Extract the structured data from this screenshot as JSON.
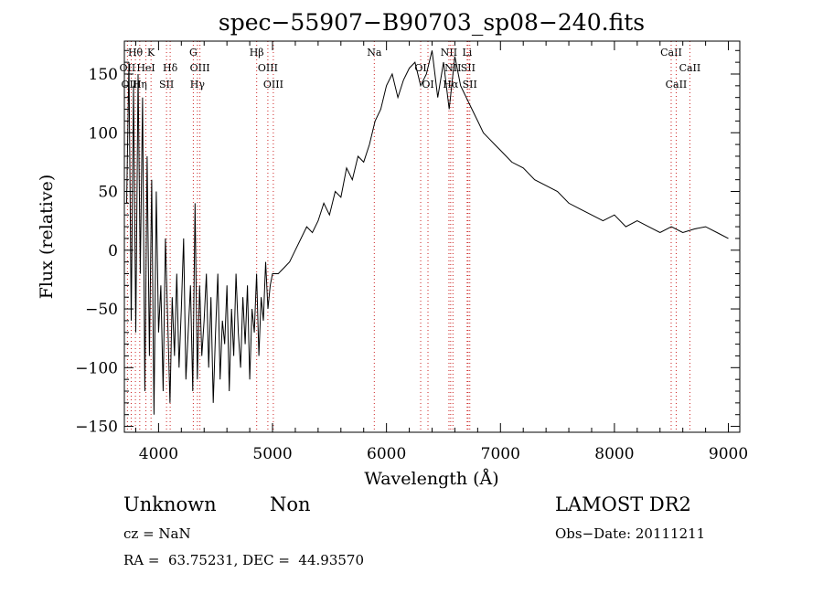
{
  "chart_data": {
    "type": "line",
    "title": "spec−55907−B90703_sp08−240.fits",
    "xlabel": "Wavelength (Å)",
    "ylabel": "Flux (relative)",
    "xlim": [
      3700,
      9100
    ],
    "ylim": [
      -155,
      178
    ],
    "xticks": [
      4000,
      5000,
      6000,
      7000,
      8000,
      9000
    ],
    "yticks": [
      -150,
      -100,
      -50,
      0,
      50,
      100,
      150
    ],
    "grid": false,
    "line_color": "#000000",
    "marker_color": "#cc2222",
    "spectrum": {
      "name": "",
      "x": [
        3720,
        3740,
        3760,
        3780,
        3800,
        3820,
        3840,
        3860,
        3880,
        3900,
        3920,
        3940,
        3960,
        3980,
        4000,
        4020,
        4040,
        4060,
        4080,
        4100,
        4120,
        4140,
        4160,
        4180,
        4200,
        4220,
        4240,
        4260,
        4280,
        4300,
        4320,
        4340,
        4360,
        4380,
        4400,
        4420,
        4440,
        4460,
        4480,
        4500,
        4520,
        4540,
        4560,
        4580,
        4600,
        4620,
        4640,
        4660,
        4680,
        4700,
        4720,
        4740,
        4760,
        4780,
        4800,
        4820,
        4840,
        4860,
        4880,
        4900,
        4920,
        4940,
        4960,
        4980,
        5000,
        5050,
        5100,
        5150,
        5200,
        5250,
        5300,
        5350,
        5400,
        5450,
        5500,
        5550,
        5600,
        5650,
        5700,
        5750,
        5800,
        5850,
        5900,
        5950,
        6000,
        6050,
        6100,
        6150,
        6200,
        6250,
        6300,
        6350,
        6400,
        6450,
        6500,
        6550,
        6600,
        6650,
        6700,
        6750,
        6800,
        6850,
        6900,
        6950,
        7000,
        7100,
        7200,
        7300,
        7400,
        7500,
        7600,
        7700,
        7800,
        7900,
        8000,
        8100,
        8200,
        8300,
        8400,
        8500,
        8600,
        8700,
        8800,
        8900,
        9000
      ],
      "y": [
        40,
        160,
        -60,
        140,
        -70,
        150,
        -20,
        130,
        -120,
        80,
        -90,
        60,
        -140,
        50,
        -70,
        -30,
        -120,
        10,
        -60,
        -130,
        -40,
        -90,
        -20,
        -100,
        -50,
        10,
        -110,
        -70,
        -30,
        -120,
        40,
        -110,
        -30,
        -90,
        -60,
        -20,
        -100,
        -40,
        -130,
        -70,
        -20,
        -110,
        -60,
        -80,
        -30,
        -120,
        -50,
        -90,
        -20,
        -70,
        -100,
        -40,
        -80,
        -30,
        -110,
        -50,
        -70,
        -20,
        -90,
        -40,
        -60,
        -10,
        -50,
        -30,
        -20,
        -20,
        -15,
        -10,
        0,
        10,
        20,
        15,
        25,
        40,
        30,
        50,
        45,
        70,
        60,
        80,
        75,
        90,
        110,
        120,
        140,
        150,
        130,
        145,
        155,
        160,
        140,
        150,
        170,
        130,
        160,
        120,
        165,
        140,
        130,
        120,
        110,
        100,
        95,
        90,
        85,
        75,
        70,
        60,
        55,
        50,
        40,
        35,
        30,
        25,
        30,
        20,
        25,
        20,
        15,
        20,
        15,
        18,
        20,
        15,
        10
      ]
    },
    "line_markers": [
      {
        "label": "Hθ",
        "wavelength": 3797,
        "row": 0
      },
      {
        "label": "K",
        "wavelength": 3934,
        "row": 0
      },
      {
        "label": "OII",
        "wavelength": 3727,
        "row": 1
      },
      {
        "label": "HeI",
        "wavelength": 3889,
        "row": 1
      },
      {
        "label": "Hδ",
        "wavelength": 4102,
        "row": 1
      },
      {
        "label": "OIII",
        "wavelength": 3760,
        "row": 2
      },
      {
        "label": "Hη",
        "wavelength": 3835,
        "row": 2
      },
      {
        "label": "SII",
        "wavelength": 4070,
        "row": 2
      },
      {
        "label": "G",
        "wavelength": 4305,
        "row": 0
      },
      {
        "label": "OIII",
        "wavelength": 4363,
        "row": 1
      },
      {
        "label": "Hγ",
        "wavelength": 4341,
        "row": 2
      },
      {
        "label": "Hβ",
        "wavelength": 4861,
        "row": 0
      },
      {
        "label": "OIII",
        "wavelength": 4959,
        "row": 1
      },
      {
        "label": "OIII",
        "wavelength": 5007,
        "row": 2
      },
      {
        "label": "Na",
        "wavelength": 5893,
        "row": 0
      },
      {
        "label": "NII",
        "wavelength": 6548,
        "row": 0
      },
      {
        "label": "Li",
        "wavelength": 6708,
        "row": 0
      },
      {
        "label": "OI",
        "wavelength": 6300,
        "row": 1
      },
      {
        "label": "NII",
        "wavelength": 6583,
        "row": 1
      },
      {
        "label": "SII",
        "wavelength": 6716,
        "row": 1
      },
      {
        "label": "OI",
        "wavelength": 6364,
        "row": 2
      },
      {
        "label": "Hα",
        "wavelength": 6563,
        "row": 2
      },
      {
        "label": "SII",
        "wavelength": 6731,
        "row": 2
      },
      {
        "label": "CaII",
        "wavelength": 8498,
        "row": 0
      },
      {
        "label": "CaII",
        "wavelength": 8662,
        "row": 1
      },
      {
        "label": "CaII",
        "wavelength": 8542,
        "row": 2
      }
    ]
  },
  "info": {
    "class": "Unknown",
    "subclass": "Non",
    "survey": "LAMOST DR2",
    "cz": "cz = NaN",
    "obs_date": "Obs−Date: 20111211",
    "coords": "RA =  63.75231, DEC =  44.93570"
  }
}
